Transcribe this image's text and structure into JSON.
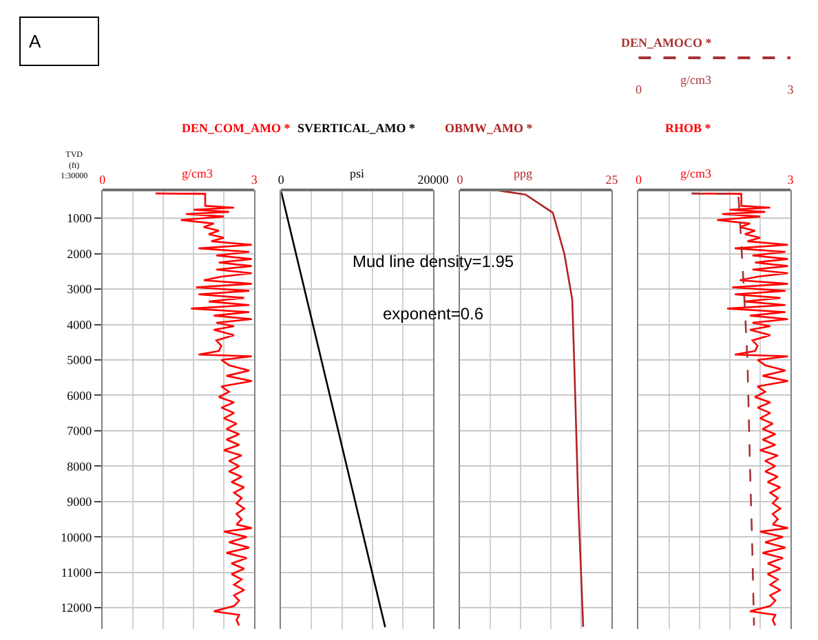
{
  "chart_data": [
    {
      "type": "line",
      "orientation": "horizontal",
      "ylabel": "TVD\n(ft)\n1:30000",
      "xlabel": "g/cm3",
      "annotations": [
        "A"
      ],
      "xlim": [
        0,
        3
      ],
      "xticks": [
        0,
        {
          "value": 0.6,
          "label": null
        },
        {
          "value": 1.2,
          "label": null
        },
        {
          "value": 1.8,
          "label": null
        },
        {
          "value": 2.4,
          "label": null
        },
        3
      ],
      "ylim": [
        12600,
        200
      ],
      "yticks": [
        1000,
        2000,
        3000,
        4000,
        5000,
        6000,
        7000,
        8000,
        9000,
        10000,
        11000,
        12000
      ],
      "grid": true,
      "series": [
        {
          "name": "DEN_COM_AMO *",
          "color": "#ff0000",
          "x": [
            300,
            310,
            650,
            700,
            760,
            820,
            880,
            950,
            1050,
            1150,
            1250,
            1350,
            1450,
            1550,
            1650,
            1750,
            1850,
            1950,
            2050,
            2150,
            2250,
            2350,
            2450,
            2550,
            2650,
            2750,
            2850,
            2950,
            3050,
            3150,
            3250,
            3350,
            3450,
            3550,
            3650,
            3750,
            3850,
            3950,
            4050,
            4150,
            4300,
            4450,
            4600,
            4750,
            4850,
            4900,
            5000,
            5150,
            5300,
            5450,
            5600,
            5750,
            5900,
            6050,
            6200,
            6350,
            6500,
            6650,
            6800,
            6950,
            7100,
            7250,
            7400,
            7550,
            7700,
            7850,
            8000,
            8150,
            8300,
            8450,
            8600,
            8750,
            8900,
            9050,
            9200,
            9350,
            9500,
            9650,
            9750,
            9850,
            10000,
            10150,
            10300,
            10450,
            10600,
            10750,
            10900,
            11050,
            11200,
            11350,
            11500,
            11650,
            11800,
            11950,
            12100,
            12200,
            12350,
            12500
          ],
          "values": [
            1.05,
            2.03,
            2.03,
            2.6,
            1.8,
            2.5,
            1.65,
            2.4,
            1.55,
            2.2,
            2.0,
            2.3,
            2.1,
            2.4,
            2.15,
            2.95,
            1.9,
            2.9,
            2.25,
            2.95,
            2.3,
            2.95,
            2.25,
            2.95,
            2.35,
            2.0,
            2.95,
            1.85,
            2.9,
            1.9,
            2.8,
            2.1,
            2.9,
            1.75,
            2.9,
            2.2,
            2.95,
            2.25,
            2.6,
            2.2,
            2.6,
            2.25,
            2.35,
            2.3,
            1.9,
            2.95,
            2.35,
            2.5,
            2.9,
            2.45,
            2.95,
            2.35,
            2.5,
            2.3,
            2.6,
            2.35,
            2.6,
            2.4,
            2.65,
            2.45,
            2.7,
            2.45,
            2.7,
            2.4,
            2.75,
            2.5,
            2.7,
            2.5,
            2.75,
            2.55,
            2.8,
            2.6,
            2.75,
            2.65,
            2.8,
            2.65,
            2.75,
            2.65,
            2.95,
            2.4,
            2.85,
            2.5,
            2.9,
            2.45,
            2.85,
            2.55,
            2.8,
            2.55,
            2.75,
            2.6,
            2.8,
            2.6,
            2.7,
            2.6,
            2.2,
            2.7,
            2.65,
            2.7
          ]
        }
      ]
    },
    {
      "type": "line",
      "orientation": "horizontal",
      "xlabel": "psi",
      "annotations": [
        "Mud line density=1.95",
        "exponent=0.6"
      ],
      "xlim": [
        0,
        20000
      ],
      "xticks": [
        0,
        {
          "value": 4000,
          "label": null
        },
        {
          "value": 8000,
          "label": null
        },
        {
          "value": 12000,
          "label": null
        },
        {
          "value": 16000,
          "label": null
        },
        20000
      ],
      "ylim": [
        12600,
        200
      ],
      "yticks": [
        1000,
        2000,
        3000,
        4000,
        5000,
        6000,
        7000,
        8000,
        9000,
        10000,
        11000,
        12000
      ],
      "grid": true,
      "tick_labels": "x",
      "series": [
        {
          "name": "SVERTICAL_AMO *",
          "color": "#000000",
          "x": [
            250,
            12550
          ],
          "values": [
            0,
            13700
          ]
        }
      ]
    },
    {
      "type": "line",
      "orientation": "horizontal",
      "xlabel": "ppg",
      "xlim": [
        0,
        25
      ],
      "xticks": [
        0,
        {
          "value": 5,
          "label": null
        },
        {
          "value": 10,
          "label": null
        },
        {
          "value": 15,
          "label": null
        },
        {
          "value": 20,
          "label": null
        },
        25
      ],
      "ylim": [
        12600,
        200
      ],
      "yticks": [
        1000,
        2000,
        3000,
        4000,
        5000,
        6000,
        7000,
        8000,
        9000,
        10000,
        11000,
        12000
      ],
      "grid": true,
      "tick_labels": "x",
      "series": [
        {
          "name": "OBMW_AMO *",
          "color": "#b22222",
          "x": [
            200,
            330,
            845,
            2008,
            3300,
            5500,
            9100,
            12540
          ],
          "values": [
            5.6,
            10.8,
            15.3,
            17.2,
            18.5,
            18.9,
            19.5,
            20.3
          ]
        }
      ]
    },
    {
      "type": "line",
      "orientation": "horizontal",
      "xlabel": "g/cm3",
      "x2label": "g/cm3",
      "xlim": [
        0,
        3
      ],
      "xticks": [
        0,
        {
          "value": 0.6,
          "label": null
        },
        {
          "value": 1.2,
          "label": null
        },
        {
          "value": 1.8,
          "label": null
        },
        {
          "value": 2.4,
          "label": null
        },
        3
      ],
      "x2lim": [
        0,
        3
      ],
      "x2ticks": [
        0,
        3
      ],
      "ylim": [
        12600,
        200
      ],
      "yticks": [
        1000,
        2000,
        3000,
        4000,
        5000,
        6000,
        7000,
        8000,
        9000,
        10000,
        11000,
        12000
      ],
      "grid": true,
      "tick_labels": "x",
      "series": [
        {
          "name": "RHOB *",
          "color": "#ff0000",
          "x": [
            300,
            310,
            650,
            700,
            760,
            820,
            880,
            950,
            1050,
            1150,
            1250,
            1350,
            1450,
            1550,
            1650,
            1750,
            1850,
            1950,
            2050,
            2150,
            2250,
            2350,
            2450,
            2550,
            2650,
            2750,
            2850,
            2950,
            3050,
            3150,
            3250,
            3350,
            3450,
            3550,
            3650,
            3750,
            3850,
            3950,
            4050,
            4150,
            4300,
            4450,
            4600,
            4750,
            4850,
            4900,
            5000,
            5150,
            5300,
            5450,
            5600,
            5750,
            5900,
            6050,
            6200,
            6350,
            6500,
            6650,
            6800,
            6950,
            7100,
            7250,
            7400,
            7550,
            7700,
            7850,
            8000,
            8150,
            8300,
            8450,
            8600,
            8750,
            8900,
            9050,
            9200,
            9350,
            9500,
            9650,
            9750,
            9850,
            10000,
            10150,
            10300,
            10450,
            10600,
            10750,
            10900,
            11050,
            11200,
            11350,
            11500,
            11650,
            11800,
            11950,
            12100,
            12200,
            12350,
            12500
          ],
          "values": [
            1.05,
            2.03,
            2.03,
            2.6,
            1.8,
            2.5,
            1.65,
            2.4,
            1.55,
            2.2,
            2.0,
            2.3,
            2.1,
            2.4,
            2.15,
            2.95,
            1.9,
            2.9,
            2.25,
            2.95,
            2.3,
            2.95,
            2.25,
            2.95,
            2.35,
            2.0,
            2.95,
            1.85,
            2.9,
            1.9,
            2.8,
            2.1,
            2.9,
            1.75,
            2.9,
            2.2,
            2.95,
            2.25,
            2.6,
            2.2,
            2.6,
            2.25,
            2.35,
            2.3,
            1.9,
            2.95,
            2.35,
            2.5,
            2.9,
            2.45,
            2.95,
            2.35,
            2.5,
            2.3,
            2.6,
            2.35,
            2.6,
            2.4,
            2.65,
            2.45,
            2.7,
            2.45,
            2.7,
            2.4,
            2.75,
            2.5,
            2.7,
            2.5,
            2.75,
            2.55,
            2.8,
            2.6,
            2.75,
            2.65,
            2.8,
            2.65,
            2.75,
            2.65,
            2.95,
            2.4,
            2.85,
            2.5,
            2.9,
            2.45,
            2.85,
            2.55,
            2.8,
            2.55,
            2.75,
            2.6,
            2.8,
            2.6,
            2.7,
            2.6,
            2.2,
            2.7,
            2.65,
            2.7
          ]
        },
        {
          "name": "DEN_AMOCO *",
          "color": "#a83232",
          "axis": "x2",
          "line_style": "dashed",
          "x": [
            300,
            310,
            1000,
            3000,
            5000,
            8000,
            10000,
            12500
          ],
          "values": [
            1.05,
            1.97,
            2.0,
            2.08,
            2.15,
            2.2,
            2.24,
            2.28
          ]
        }
      ]
    }
  ]
}
